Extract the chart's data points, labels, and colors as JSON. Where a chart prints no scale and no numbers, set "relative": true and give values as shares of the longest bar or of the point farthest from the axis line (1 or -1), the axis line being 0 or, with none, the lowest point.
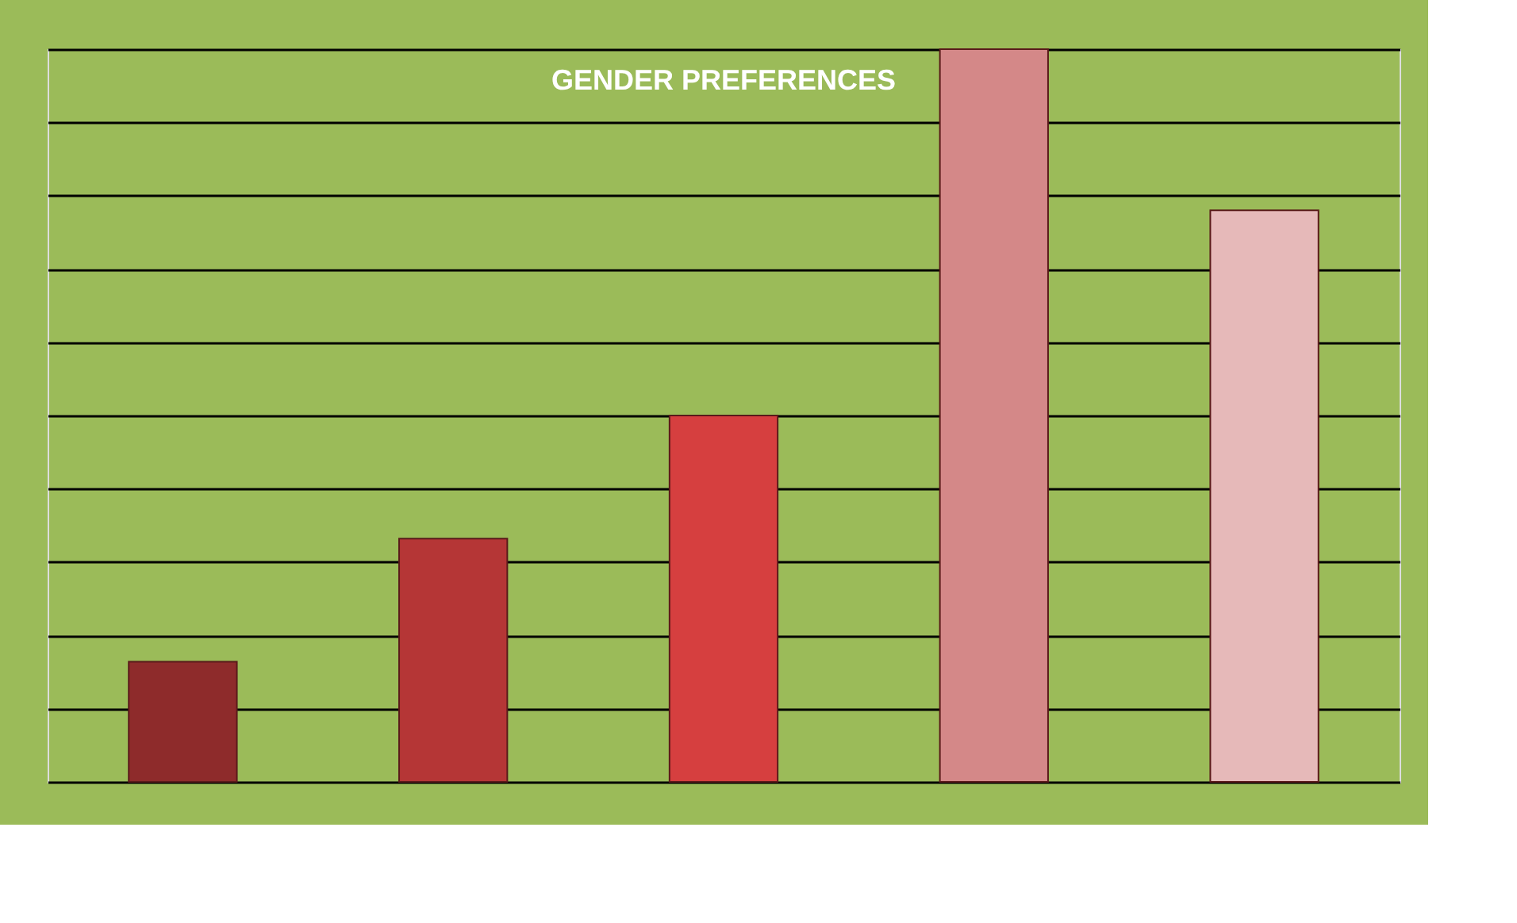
{
  "chart_data": {
    "type": "bar",
    "title": "GENDER PREFERENCES",
    "relative": true,
    "categories": [
      null,
      null,
      null,
      null,
      null
    ],
    "values": [
      0.164,
      0.332,
      0.5,
      1,
      0.78
    ],
    "colors": [
      "#8e2b2b",
      "#b53636",
      "#d63f3f",
      "#d48888",
      "#e6b9b9"
    ],
    "grid": "y"
  }
}
